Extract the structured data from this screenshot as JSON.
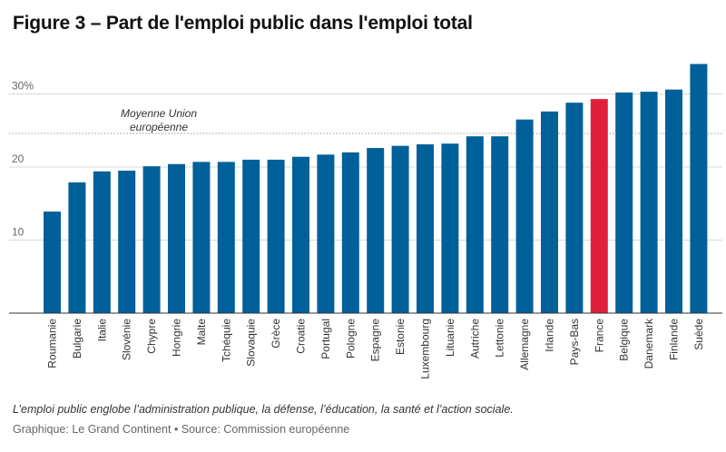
{
  "header": {
    "title": "Figure 3 – Part de l'emploi public dans l'emploi total"
  },
  "footer": {
    "note": "L’emploi public englobe l’administration publique, la défense, l’éducation, la santé et l’action sociale.",
    "source": "Graphique: Le Grand Continent • Source: Commission européenne"
  },
  "colors": {
    "bar": "#00609a",
    "highlight": "#e0203a",
    "grid": "#d9d9d9",
    "average_line": "#9a9a9a"
  },
  "chart_data": {
    "type": "bar",
    "title": "Figure 3 – Part de l'emploi public dans l'emploi total",
    "xlabel": "",
    "ylabel": "",
    "ylim": [
      0,
      34.5
    ],
    "y_ticks": [
      {
        "value": 10,
        "label": "10"
      },
      {
        "value": 20,
        "label": "20"
      },
      {
        "value": 30,
        "label": "30%"
      }
    ],
    "grid": true,
    "categories": [
      "Roumanie",
      "Bulgarie",
      "Italie",
      "Slovénie",
      "Chypre",
      "Hongrie",
      "Malte",
      "Tchéquie",
      "Slovaquie",
      "Grèce",
      "Croatie",
      "Portugal",
      "Pologne",
      "Espagne",
      "Estonie",
      "Luxembourg",
      "Lituanie",
      "Autriche",
      "Lettonie",
      "Allemagne",
      "Irlande",
      "Pays-Bas",
      "France",
      "Belgique",
      "Danemark",
      "Finlande",
      "Suède"
    ],
    "values": [
      13.9,
      17.9,
      19.4,
      19.5,
      20.1,
      20.4,
      20.7,
      20.7,
      21.0,
      21.0,
      21.4,
      21.7,
      22.0,
      22.6,
      22.9,
      23.1,
      23.2,
      24.2,
      24.2,
      26.5,
      27.6,
      28.8,
      29.3,
      30.2,
      30.3,
      30.6,
      34.1
    ],
    "highlight": "France",
    "average": {
      "value": 24.6,
      "label_lines": [
        "Moyenne Union",
        "européenne"
      ]
    }
  }
}
